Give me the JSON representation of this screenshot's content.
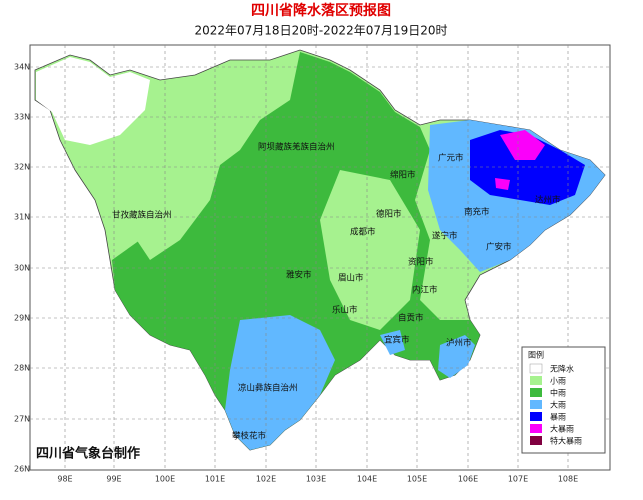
{
  "header": {
    "title": "四川省降水落区预报图",
    "subtitle": "2022年07月18日20时-2022年07月19日20时"
  },
  "axes": {
    "latitude": [
      "34N",
      "33N",
      "32N",
      "31N",
      "30N",
      "29N",
      "28N",
      "27N",
      "26N"
    ],
    "longitude": [
      "98E",
      "99E",
      "100E",
      "101E",
      "102E",
      "103E",
      "104E",
      "105E",
      "106E",
      "107E",
      "108E"
    ]
  },
  "cities": [
    "阿坝藏族羌族自治州",
    "甘孜藏族自治州",
    "广元市",
    "绵阳市",
    "南充市",
    "德阳市",
    "达州市",
    "遂宁市",
    "成都市",
    "广安市",
    "雅安市",
    "资阳市",
    "眉山市",
    "内江市",
    "乐山市",
    "自贡市",
    "宜宾市",
    "泸州市",
    "凉山彝族自治州",
    "攀枝花市"
  ],
  "legend": {
    "title": "图例",
    "items": [
      "无降水",
      "小雨",
      "中雨",
      "大雨",
      "暴雨",
      "大暴雨",
      "特大暴雨"
    ]
  },
  "footer": "四川省气象台制作"
}
